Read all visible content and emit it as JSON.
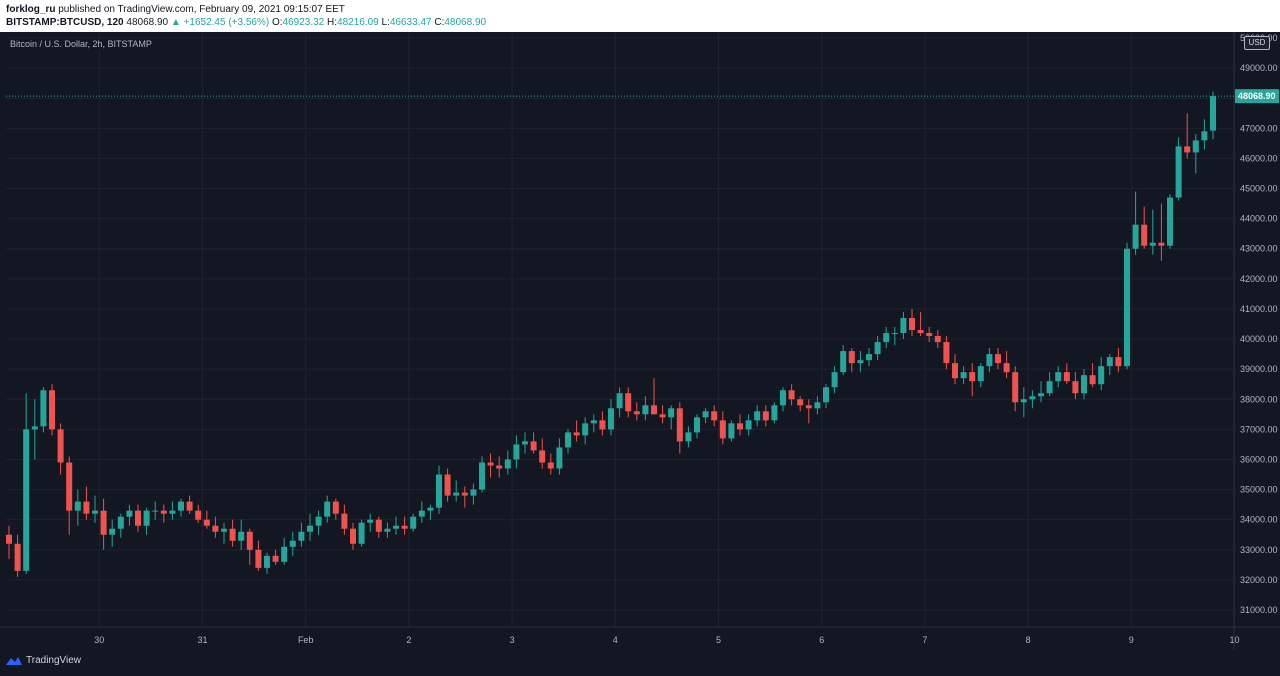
{
  "header": {
    "author": "forklog_ru",
    "published_text": "published on TradingView.com, February 09, 2021 09:15:07 EET",
    "symbol": "BITSTAMP:BTCUSD, 120",
    "last": "48068.90",
    "change": "▲ +1652.45 (+3.56%)",
    "o_label": "O:",
    "o_value": "46923.32",
    "h_label": "H:",
    "h_value": "48216.09",
    "l_label": "L:",
    "l_value": "46633.47",
    "c_label": "C:",
    "c_value": "48068.90"
  },
  "legend": "Bitcoin / U.S. Dollar, 2h, BITSTAMP",
  "currency": "USD",
  "footer": {
    "brand": "TradingView"
  },
  "colors": {
    "up": "#26a69a",
    "down": "#ef5350",
    "background": "#131722",
    "grid": "#2a2e39",
    "text": "#b2b5be",
    "last_price_line": "#26a69a"
  },
  "chart_data": {
    "type": "candlestick",
    "title": "Bitcoin / U.S. Dollar, 2h, BITSTAMP",
    "ylim": [
      30500,
      50000
    ],
    "y_ticks": [
      "31000.00",
      "32000.00",
      "33000.00",
      "34000.00",
      "35000.00",
      "36000.00",
      "37000.00",
      "38000.00",
      "39000.00",
      "40000.00",
      "41000.00",
      "42000.00",
      "43000.00",
      "44000.00",
      "45000.00",
      "46000.00",
      "47000.00",
      "48000.00",
      "49000.00",
      "50000.00"
    ],
    "last_price": 48068.9,
    "last_price_label": "48068.90",
    "x_ticks": [
      {
        "label": "30",
        "index": 10.5
      },
      {
        "label": "31",
        "index": 22.5
      },
      {
        "label": "Feb",
        "index": 34.5
      },
      {
        "label": "2",
        "index": 46.5
      },
      {
        "label": "3",
        "index": 58.5
      },
      {
        "label": "4",
        "index": 70.5
      },
      {
        "label": "5",
        "index": 82.5
      },
      {
        "label": "6",
        "index": 94.5
      },
      {
        "label": "7",
        "index": 106.5
      },
      {
        "label": "8",
        "index": 118.5
      },
      {
        "label": "9",
        "index": 130.5
      },
      {
        "label": "10",
        "index": 142.5
      }
    ],
    "candles": [
      [
        33500,
        33800,
        32700,
        33200
      ],
      [
        33200,
        33500,
        32100,
        32300
      ],
      [
        32300,
        38200,
        32200,
        37000
      ],
      [
        37000,
        38000,
        36000,
        37100
      ],
      [
        37100,
        38400,
        36900,
        38300
      ],
      [
        38300,
        38500,
        36800,
        37000
      ],
      [
        37000,
        37200,
        35500,
        35900
      ],
      [
        35900,
        36100,
        33500,
        34300
      ],
      [
        34300,
        35000,
        33800,
        34600
      ],
      [
        34600,
        35100,
        34000,
        34200
      ],
      [
        34200,
        34800,
        33900,
        34300
      ],
      [
        34300,
        34700,
        33000,
        33500
      ],
      [
        33500,
        34000,
        33100,
        33700
      ],
      [
        33700,
        34200,
        33400,
        34100
      ],
      [
        34100,
        34500,
        33800,
        34300
      ],
      [
        34300,
        34500,
        33600,
        33800
      ],
      [
        33800,
        34400,
        33500,
        34300
      ],
      [
        34300,
        34600,
        34000,
        34300
      ],
      [
        34300,
        34500,
        33900,
        34200
      ],
      [
        34200,
        34600,
        34000,
        34300
      ],
      [
        34300,
        34700,
        34100,
        34600
      ],
      [
        34600,
        34800,
        34200,
        34300
      ],
      [
        34300,
        34500,
        33900,
        34000
      ],
      [
        34000,
        34300,
        33700,
        33800
      ],
      [
        33800,
        34100,
        33400,
        33600
      ],
      [
        33600,
        33900,
        33200,
        33700
      ],
      [
        33700,
        34000,
        33100,
        33300
      ],
      [
        33300,
        34000,
        33000,
        33600
      ],
      [
        33600,
        33700,
        32500,
        33000
      ],
      [
        33000,
        33300,
        32300,
        32400
      ],
      [
        32400,
        32900,
        32200,
        32800
      ],
      [
        32800,
        33000,
        32500,
        32600
      ],
      [
        32600,
        33400,
        32500,
        33100
      ],
      [
        33100,
        33600,
        32800,
        33300
      ],
      [
        33300,
        33900,
        33100,
        33600
      ],
      [
        33600,
        34200,
        33300,
        33800
      ],
      [
        33800,
        34300,
        33500,
        34100
      ],
      [
        34100,
        34800,
        33900,
        34600
      ],
      [
        34600,
        34700,
        34000,
        34200
      ],
      [
        34200,
        34500,
        33500,
        33700
      ],
      [
        33700,
        33900,
        33000,
        33200
      ],
      [
        33200,
        34000,
        33100,
        33900
      ],
      [
        33900,
        34200,
        33600,
        34000
      ],
      [
        34000,
        34100,
        33400,
        33600
      ],
      [
        33600,
        33900,
        33400,
        33700
      ],
      [
        33700,
        34100,
        33500,
        33800
      ],
      [
        33800,
        34100,
        33500,
        33700
      ],
      [
        33700,
        34200,
        33600,
        34100
      ],
      [
        34100,
        34600,
        33900,
        34300
      ],
      [
        34300,
        34500,
        34000,
        34400
      ],
      [
        34400,
        35800,
        34200,
        35500
      ],
      [
        35500,
        35700,
        34600,
        34800
      ],
      [
        34800,
        35300,
        34600,
        34900
      ],
      [
        34900,
        35100,
        34400,
        34800
      ],
      [
        34800,
        35200,
        34500,
        35000
      ],
      [
        35000,
        36100,
        34900,
        35900
      ],
      [
        35900,
        36200,
        35400,
        35800
      ],
      [
        35800,
        36100,
        35400,
        35700
      ],
      [
        35700,
        36300,
        35500,
        36000
      ],
      [
        36000,
        36800,
        35700,
        36500
      ],
      [
        36500,
        36900,
        36200,
        36600
      ],
      [
        36600,
        36900,
        36200,
        36300
      ],
      [
        36300,
        36700,
        35700,
        35900
      ],
      [
        35900,
        36200,
        35500,
        35700
      ],
      [
        35700,
        36700,
        35500,
        36400
      ],
      [
        36400,
        37000,
        36200,
        36900
      ],
      [
        36900,
        37300,
        36600,
        36800
      ],
      [
        36800,
        37400,
        36500,
        37200
      ],
      [
        37200,
        37500,
        36900,
        37300
      ],
      [
        37300,
        37600,
        36800,
        37000
      ],
      [
        37000,
        38000,
        36800,
        37700
      ],
      [
        37700,
        38400,
        37400,
        38200
      ],
      [
        38200,
        38400,
        37400,
        37600
      ],
      [
        37600,
        37900,
        37300,
        37500
      ],
      [
        37500,
        38100,
        37300,
        37800
      ],
      [
        37800,
        38700,
        37600,
        37500
      ],
      [
        37500,
        37800,
        37200,
        37400
      ],
      [
        37400,
        37800,
        37000,
        37700
      ],
      [
        37700,
        37900,
        36200,
        36600
      ],
      [
        36600,
        37100,
        36400,
        36900
      ],
      [
        36900,
        37500,
        36700,
        37400
      ],
      [
        37400,
        37700,
        37200,
        37600
      ],
      [
        37600,
        37800,
        37100,
        37300
      ],
      [
        37300,
        37600,
        36500,
        36700
      ],
      [
        36700,
        37300,
        36600,
        37200
      ],
      [
        37200,
        37500,
        36800,
        37000
      ],
      [
        37000,
        37500,
        36800,
        37300
      ],
      [
        37300,
        37800,
        37100,
        37600
      ],
      [
        37600,
        37800,
        37100,
        37300
      ],
      [
        37300,
        37900,
        37200,
        37800
      ],
      [
        37800,
        38400,
        37600,
        38300
      ],
      [
        38300,
        38500,
        37800,
        38000
      ],
      [
        38000,
        38100,
        37600,
        37800
      ],
      [
        37800,
        38000,
        37200,
        37700
      ],
      [
        37700,
        38100,
        37500,
        37900
      ],
      [
        37900,
        38500,
        37700,
        38400
      ],
      [
        38400,
        39100,
        38200,
        38900
      ],
      [
        38900,
        39800,
        38800,
        39600
      ],
      [
        39600,
        39700,
        38900,
        39200
      ],
      [
        39200,
        39600,
        38900,
        39300
      ],
      [
        39300,
        39700,
        39100,
        39500
      ],
      [
        39500,
        40100,
        39300,
        39900
      ],
      [
        39900,
        40400,
        39700,
        40200
      ],
      [
        40200,
        40400,
        39800,
        40200
      ],
      [
        40200,
        40900,
        40000,
        40700
      ],
      [
        40700,
        41000,
        40100,
        40300
      ],
      [
        40300,
        40900,
        40100,
        40200
      ],
      [
        40200,
        40400,
        39900,
        40100
      ],
      [
        40100,
        40300,
        39700,
        39900
      ],
      [
        39900,
        40100,
        39000,
        39200
      ],
      [
        39200,
        39500,
        38500,
        38700
      ],
      [
        38700,
        39100,
        38500,
        38900
      ],
      [
        38900,
        39200,
        38100,
        38600
      ],
      [
        38600,
        39200,
        38400,
        39100
      ],
      [
        39100,
        39700,
        38900,
        39500
      ],
      [
        39500,
        39700,
        39000,
        39200
      ],
      [
        39200,
        39600,
        38700,
        38900
      ],
      [
        38900,
        39100,
        37600,
        37900
      ],
      [
        37900,
        38400,
        37400,
        38000
      ],
      [
        38000,
        38300,
        37700,
        38100
      ],
      [
        38100,
        38600,
        37900,
        38200
      ],
      [
        38200,
        38900,
        38100,
        38600
      ],
      [
        38600,
        39100,
        38400,
        38900
      ],
      [
        38900,
        39200,
        38500,
        38600
      ],
      [
        38600,
        38900,
        38000,
        38200
      ],
      [
        38200,
        39000,
        38000,
        38800
      ],
      [
        38800,
        39200,
        38400,
        38500
      ],
      [
        38500,
        39400,
        38300,
        39100
      ],
      [
        39100,
        39500,
        38800,
        39400
      ],
      [
        39400,
        39700,
        38900,
        39100
      ],
      [
        39100,
        43200,
        39000,
        43000
      ],
      [
        43000,
        44900,
        42800,
        43800
      ],
      [
        43800,
        44400,
        43000,
        43100
      ],
      [
        43100,
        44300,
        42800,
        43200
      ],
      [
        43200,
        44500,
        42600,
        43100
      ],
      [
        43100,
        44800,
        43000,
        44700
      ],
      [
        44700,
        46700,
        44600,
        46400
      ],
      [
        46400,
        47500,
        46000,
        46200
      ],
      [
        46200,
        46800,
        45500,
        46600
      ],
      [
        46600,
        47300,
        46300,
        46900
      ],
      [
        46923,
        48216,
        46633,
        48069
      ]
    ]
  }
}
